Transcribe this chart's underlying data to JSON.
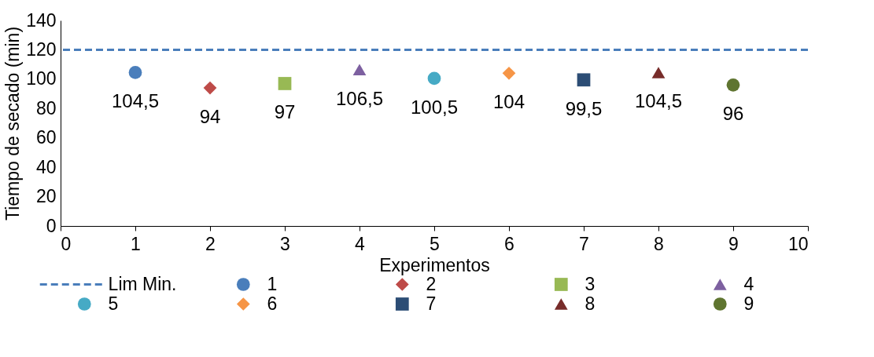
{
  "chart_data": {
    "type": "scatter",
    "xlabel": "Experimentos",
    "ylabel": "Tiempo de secado (min)",
    "xlim": [
      0,
      10
    ],
    "xticks": [
      0,
      1,
      2,
      3,
      4,
      5,
      6,
      7,
      8,
      9,
      10
    ],
    "ylim": [
      0,
      140
    ],
    "yticks": [
      0,
      20,
      40,
      60,
      80,
      100,
      120,
      140
    ],
    "grid": false,
    "legend": "bottom",
    "ref_lines": [
      {
        "axis": "y",
        "value": 120,
        "label": "Lim Min.",
        "color": "#4a7ebb",
        "line_style": "dashed"
      }
    ],
    "series": [
      {
        "name": "1",
        "color": "#4a7ebb",
        "marker": "circle",
        "x": [
          1
        ],
        "values": [
          104.5
        ],
        "value_labels": [
          "104,5"
        ]
      },
      {
        "name": "2",
        "color": "#be4b48",
        "marker": "diamond",
        "x": [
          2
        ],
        "values": [
          94
        ],
        "value_labels": [
          "94"
        ]
      },
      {
        "name": "3",
        "color": "#98b954",
        "marker": "square",
        "x": [
          3
        ],
        "values": [
          97
        ],
        "value_labels": [
          "97"
        ]
      },
      {
        "name": "4",
        "color": "#7d60a0",
        "marker": "triangle",
        "x": [
          4
        ],
        "values": [
          106.5
        ],
        "value_labels": [
          "106,5"
        ]
      },
      {
        "name": "5",
        "color": "#46aac5",
        "marker": "circle",
        "x": [
          5
        ],
        "values": [
          100.5
        ],
        "value_labels": [
          "100,5"
        ]
      },
      {
        "name": "6",
        "color": "#f69546",
        "marker": "diamond",
        "x": [
          6
        ],
        "values": [
          104
        ],
        "value_labels": [
          "104"
        ]
      },
      {
        "name": "7",
        "color": "#2c4d75",
        "marker": "square",
        "x": [
          7
        ],
        "values": [
          99.5
        ],
        "value_labels": [
          "99,5"
        ]
      },
      {
        "name": "8",
        "color": "#772c2a",
        "marker": "triangle",
        "x": [
          8
        ],
        "values": [
          104.5
        ],
        "value_labels": [
          "104,5"
        ]
      },
      {
        "name": "9",
        "color": "#5f7530",
        "marker": "circle",
        "x": [
          9
        ],
        "values": [
          96
        ],
        "value_labels": [
          "96"
        ]
      }
    ]
  }
}
